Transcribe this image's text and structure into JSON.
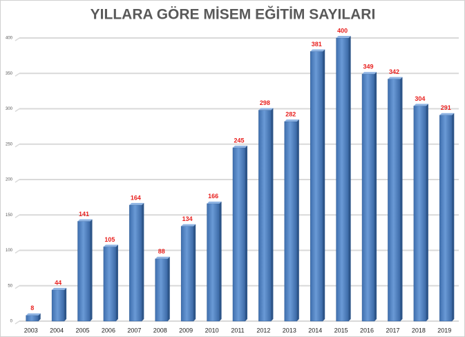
{
  "chart_data": {
    "type": "bar",
    "title": "YILLARA GÖRE MİSEM EĞİTİM SAYILARI",
    "categories": [
      "2003",
      "2004",
      "2005",
      "2006",
      "2007",
      "2008",
      "2009",
      "2010",
      "2011",
      "2012",
      "2013",
      "2014",
      "2015",
      "2016",
      "2017",
      "2018",
      "2019"
    ],
    "values": [
      8,
      44,
      141,
      105,
      164,
      88,
      134,
      166,
      245,
      298,
      282,
      381,
      400,
      349,
      342,
      304,
      291
    ],
    "color": "#4f81bd",
    "label_color": "#e8201e",
    "ylim": [
      0,
      400
    ],
    "yticks": [
      0,
      50,
      100,
      150,
      200,
      250,
      300,
      350,
      400
    ],
    "grid": true
  }
}
